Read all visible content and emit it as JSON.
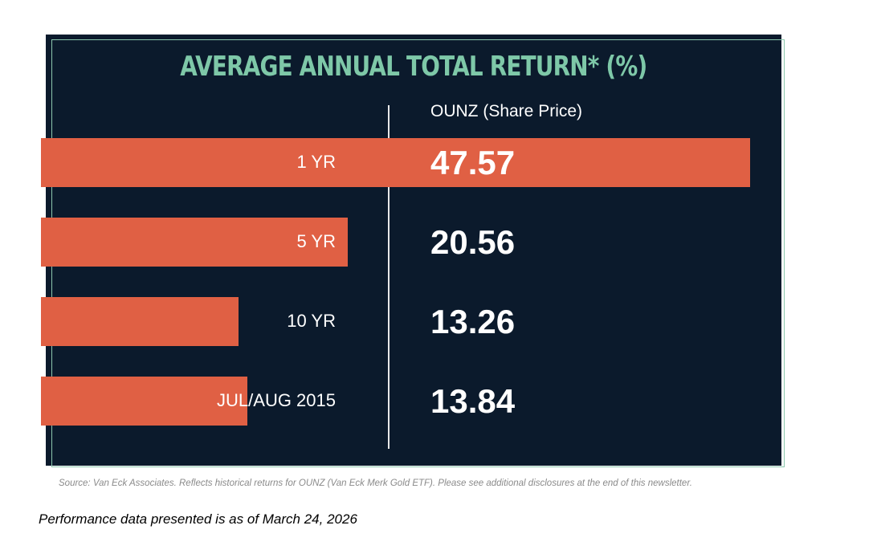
{
  "chart_data": {
    "type": "bar",
    "orientation": "horizontal",
    "title": "AVERAGE ANNUAL TOTAL RETURN* (%)",
    "categories": [
      "1 YR",
      "5 YR",
      "10 YR",
      "JUL/AUG 2015"
    ],
    "series": [
      {
        "name": "OUNZ (Share Price)",
        "values": [
          47.57,
          20.56,
          13.26,
          13.84
        ]
      }
    ],
    "value_labels": [
      "47.57",
      "20.56",
      "13.26",
      "13.84"
    ],
    "grid": false,
    "legend": "top",
    "colors": {
      "background": "#0b1a2c",
      "bar": "#e06044",
      "title": "#7ec8a8",
      "outline": "#8cc7ae"
    }
  },
  "source_note": "Source: Van Eck Associates. Reflects historical returns for OUNZ (Van Eck Merk Gold ETF). Please see additional disclosures at the end of this newsletter.",
  "as_of_note": "Performance data presented is as of March 24, 2026"
}
